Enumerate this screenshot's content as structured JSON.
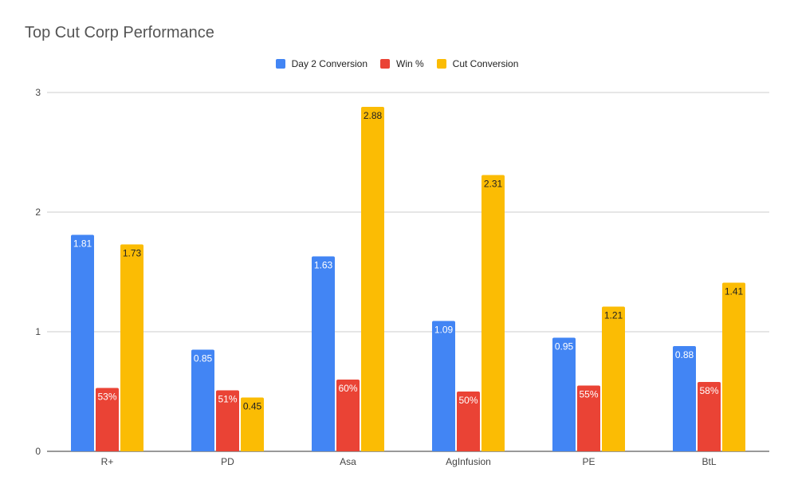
{
  "chart_data": {
    "type": "bar",
    "title": "Top Cut Corp Performance",
    "categories": [
      "R+",
      "PD",
      "Asa",
      "AgInfusion",
      "PE",
      "BtL"
    ],
    "series": [
      {
        "name": "Day 2 Conversion",
        "color": "#4285F4",
        "values": [
          1.81,
          0.85,
          1.63,
          1.09,
          0.95,
          0.88
        ],
        "labels": [
          "1.81",
          "0.85",
          "1.63",
          "1.09",
          "0.95",
          "0.88"
        ]
      },
      {
        "name": "Win %",
        "color": "#EA4335",
        "values": [
          0.53,
          0.51,
          0.6,
          0.5,
          0.55,
          0.58
        ],
        "labels": [
          "53%",
          "51%",
          "60%",
          "50%",
          "55%",
          "58%"
        ]
      },
      {
        "name": "Cut Conversion",
        "color": "#FBBC04",
        "values": [
          1.73,
          0.45,
          2.88,
          2.31,
          1.21,
          1.41
        ],
        "labels": [
          "1.73",
          "0.45",
          "2.88",
          "2.31",
          "1.21",
          "1.41"
        ]
      }
    ],
    "yticks": [
      "0",
      "1",
      "2",
      "3"
    ],
    "ylim": [
      0,
      3
    ],
    "grid": true,
    "legend": "top-center"
  }
}
